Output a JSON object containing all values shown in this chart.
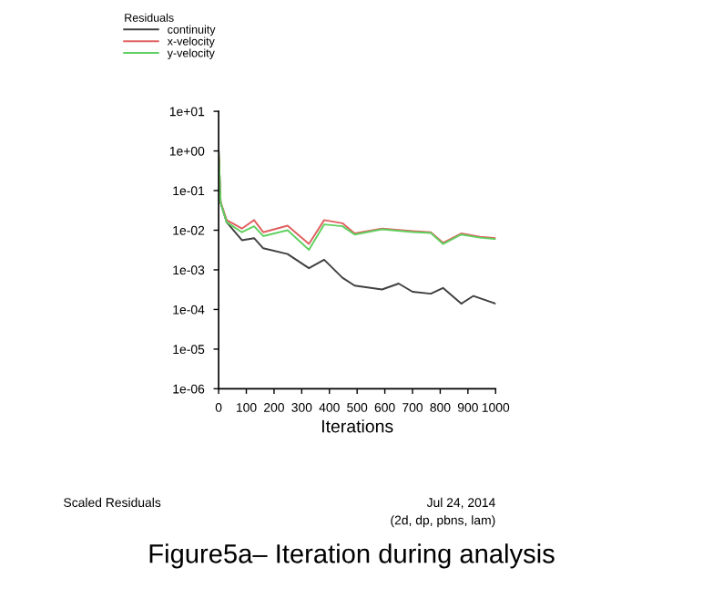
{
  "chart_data": {
    "type": "line",
    "xlabel": "Iterations",
    "legend_title": "Residuals",
    "legend": "top left",
    "log": "y",
    "grid": false,
    "xlim": [
      0,
      1000
    ],
    "xticks": [
      0,
      100,
      200,
      300,
      400,
      500,
      600,
      700,
      800,
      900,
      1000
    ],
    "ylim": [
      1e-06,
      10
    ],
    "yticks": [
      {
        "value": 1e-06,
        "label": "1e-06"
      },
      {
        "value": 1e-05,
        "label": "1e-05"
      },
      {
        "value": 0.0001,
        "label": "1e-04"
      },
      {
        "value": 0.001,
        "label": "1e-03"
      },
      {
        "value": 0.01,
        "label": "1e-02"
      },
      {
        "value": 0.1,
        "label": "1e-01"
      },
      {
        "value": 1,
        "label": "1e+00"
      },
      {
        "value": 10,
        "label": "1e+01"
      }
    ],
    "series": [
      {
        "name": "continuity",
        "color": "#404040",
        "x": [
          0,
          7,
          29,
          84,
          128,
          161,
          249,
          326,
          381,
          447,
          491,
          590,
          650,
          700,
          766,
          810,
          876,
          920,
          1000
        ],
        "values": [
          1.0,
          0.05,
          0.016,
          0.0056,
          0.0063,
          0.0035,
          0.0025,
          0.0011,
          0.0018,
          0.00063,
          0.0004,
          0.00032,
          0.00045,
          0.00028,
          0.00025,
          0.00035,
          0.00014,
          0.00022,
          0.00014
        ]
      },
      {
        "name": "x-velocity",
        "color": "#e06060",
        "x": [
          0,
          7,
          29,
          84,
          128,
          161,
          249,
          326,
          381,
          447,
          491,
          590,
          700,
          766,
          810,
          876,
          943,
          1000
        ],
        "values": [
          1.0,
          0.052,
          0.018,
          0.011,
          0.018,
          0.0089,
          0.013,
          0.0045,
          0.018,
          0.015,
          0.0083,
          0.011,
          0.0095,
          0.0089,
          0.0048,
          0.0083,
          0.0068,
          0.0063
        ]
      },
      {
        "name": "y-velocity",
        "color": "#60d060",
        "x": [
          0,
          7,
          29,
          84,
          128,
          161,
          249,
          326,
          381,
          447,
          491,
          590,
          700,
          766,
          810,
          876,
          943,
          1000
        ],
        "values": [
          1.0,
          0.05,
          0.016,
          0.0089,
          0.0126,
          0.0071,
          0.01,
          0.0032,
          0.014,
          0.0126,
          0.0078,
          0.0105,
          0.009,
          0.0085,
          0.0045,
          0.0078,
          0.0065,
          0.006
        ]
      }
    ],
    "annotations": [
      "Scaled Residuals",
      "Jul 24, 2014",
      "(2d, dp, pbns, lam)",
      "Figure5a– Iteration during analysis"
    ]
  }
}
